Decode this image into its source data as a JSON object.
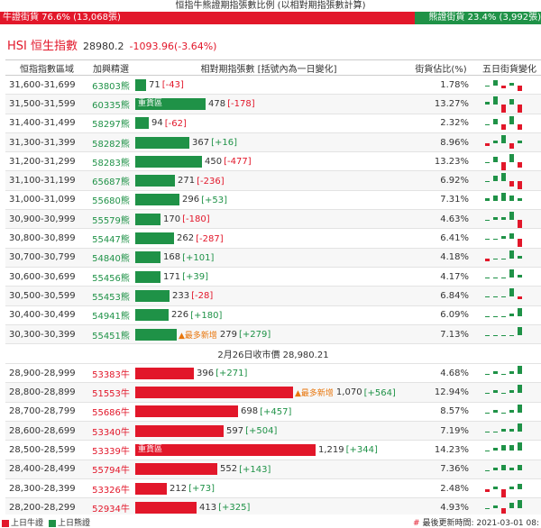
{
  "header": {
    "title": "恒指牛熊證期指張數比例 (以相對期指張數計算)",
    "bull_label": "牛證街貨 76.6% (13,068張)",
    "bear_label": "熊證街貨 23.4% (3,992張)",
    "bull_ratio": 0.766
  },
  "index": {
    "name": "HSI 恒生指數",
    "price": "28980.2",
    "change": "-1093.96(-3.64%)"
  },
  "columns": {
    "range": "恒指指數區域",
    "code": "加興精選",
    "contracts": "相對期指張數 [括號內為一日變化]",
    "pct": "街貨佔比(%)",
    "five_day": "五日街貨變化"
  },
  "divider": "2月26日收市價 28,980.21",
  "max_contracts": 1250,
  "bear_rows": [
    {
      "range": "31,600-31,699",
      "code": "63803熊",
      "contracts": 71,
      "contracts_text": "71",
      "change": "[-43]",
      "pct": "1.78%",
      "tag": "",
      "spark": [
        0,
        2,
        -1,
        1,
        -2
      ]
    },
    {
      "range": "31,500-31,599",
      "code": "60335熊",
      "contracts": 478,
      "contracts_text": "478",
      "change": "[-178]",
      "pct": "13.27%",
      "tag": "重貨區",
      "spark": [
        1,
        3,
        -3,
        2,
        -3
      ]
    },
    {
      "range": "31,400-31,499",
      "code": "58297熊",
      "contracts": 94,
      "contracts_text": "94",
      "change": "[-62]",
      "pct": "2.32%",
      "tag": "",
      "spark": [
        0,
        2,
        -2,
        3,
        -2
      ]
    },
    {
      "range": "31,300-31,399",
      "code": "58282熊",
      "contracts": 367,
      "contracts_text": "367",
      "change": "[+16]",
      "pct": "8.96%",
      "tag": "",
      "spark": [
        -1,
        1,
        3,
        -2,
        1
      ]
    },
    {
      "range": "31,200-31,299",
      "code": "58283熊",
      "contracts": 450,
      "contracts_text": "450",
      "change": "[-477]",
      "pct": "13.23%",
      "tag": "",
      "spark": [
        0,
        2,
        -3,
        3,
        -2
      ]
    },
    {
      "range": "31,100-31,199",
      "code": "65687熊",
      "contracts": 271,
      "contracts_text": "271",
      "change": "[-236]",
      "pct": "6.92%",
      "tag": "",
      "spark": [
        0,
        2,
        3,
        -2,
        -3
      ]
    },
    {
      "range": "31,000-31,099",
      "code": "55680熊",
      "contracts": 296,
      "contracts_text": "296",
      "change": "[+53]",
      "pct": "7.31%",
      "tag": "",
      "spark": [
        1,
        2,
        3,
        2,
        1
      ]
    },
    {
      "range": "30,900-30,999",
      "code": "55579熊",
      "contracts": 170,
      "contracts_text": "170",
      "change": "[-180]",
      "pct": "4.63%",
      "tag": "",
      "spark": [
        0,
        1,
        1,
        3,
        -3
      ]
    },
    {
      "range": "30,800-30,899",
      "code": "55447熊",
      "contracts": 262,
      "contracts_text": "262",
      "change": "[-287]",
      "pct": "6.41%",
      "tag": "",
      "spark": [
        0,
        0,
        1,
        2,
        -3
      ]
    },
    {
      "range": "30,700-30,799",
      "code": "54840熊",
      "contracts": 168,
      "contracts_text": "168",
      "change": "[+101]",
      "pct": "4.18%",
      "tag": "",
      "spark": [
        -1,
        0,
        0,
        3,
        1
      ]
    },
    {
      "range": "30,600-30,699",
      "code": "55456熊",
      "contracts": 171,
      "contracts_text": "171",
      "change": "[+39]",
      "pct": "4.17%",
      "tag": "",
      "spark": [
        0,
        0,
        0,
        3,
        1
      ]
    },
    {
      "range": "30,500-30,599",
      "code": "55453熊",
      "contracts": 233,
      "contracts_text": "233",
      "change": "[-28]",
      "pct": "6.84%",
      "tag": "",
      "spark": [
        0,
        0,
        0,
        3,
        -1
      ]
    },
    {
      "range": "30,400-30,499",
      "code": "54941熊",
      "contracts": 226,
      "contracts_text": "226",
      "change": "[+180]",
      "pct": "6.09%",
      "tag": "",
      "spark": [
        0,
        0,
        0,
        1,
        3
      ]
    },
    {
      "range": "30,300-30,399",
      "code": "55451熊",
      "contracts": 279,
      "contracts_text": "279",
      "change": "[+279]",
      "pct": "7.13%",
      "tag": "▲最多新增",
      "spark": [
        0,
        0,
        0,
        0,
        3
      ]
    }
  ],
  "bull_rows": [
    {
      "range": "28,900-28,999",
      "code": "53383牛",
      "contracts": 396,
      "contracts_text": "396",
      "change": "[+271]",
      "pct": "4.68%",
      "tag": "",
      "spark": [
        0,
        1,
        0,
        1,
        3
      ]
    },
    {
      "range": "28,800-28,899",
      "code": "51553牛",
      "contracts": 1070,
      "contracts_text": "1,070",
      "change": "[+564]",
      "pct": "12.94%",
      "tag": "▲最多新增",
      "spark": [
        0,
        1,
        0,
        1,
        3
      ]
    },
    {
      "range": "28,700-28,799",
      "code": "55686牛",
      "contracts": 698,
      "contracts_text": "698",
      "change": "[+457]",
      "pct": "8.57%",
      "tag": "",
      "spark": [
        0,
        1,
        0,
        1,
        3
      ]
    },
    {
      "range": "28,600-28,699",
      "code": "53340牛",
      "contracts": 597,
      "contracts_text": "597",
      "change": "[+504]",
      "pct": "7.19%",
      "tag": "",
      "spark": [
        0,
        0,
        1,
        1,
        3
      ]
    },
    {
      "range": "28,500-28,599",
      "code": "53339牛",
      "contracts": 1219,
      "contracts_text": "1,219",
      "change": "[+344]",
      "pct": "14.23%",
      "tag": "重貨區",
      "spark": [
        0,
        1,
        2,
        2,
        3
      ]
    },
    {
      "range": "28,400-28,499",
      "code": "55794牛",
      "contracts": 552,
      "contracts_text": "552",
      "change": "[+143]",
      "pct": "7.36%",
      "tag": "",
      "spark": [
        0,
        1,
        2,
        1,
        2
      ]
    },
    {
      "range": "28,300-28,399",
      "code": "53326牛",
      "contracts": 212,
      "contracts_text": "212",
      "change": "[+73]",
      "pct": "2.48%",
      "tag": "",
      "spark": [
        -1,
        1,
        -3,
        1,
        2
      ]
    },
    {
      "range": "28,200-28,299",
      "code": "52934牛",
      "contracts": 413,
      "contracts_text": "413",
      "change": "[+325]",
      "pct": "4.93%",
      "tag": "",
      "spark": [
        0,
        1,
        -2,
        2,
        3
      ]
    }
  ],
  "footer": {
    "legend_bull": "上日牛證",
    "legend_bear": "上日熊證",
    "updated": "最後更新時間: 2021-03-01 08:"
  },
  "colors": {
    "bull": "#e2172a",
    "bear": "#1f9247",
    "new_tag": "#e8760c"
  }
}
